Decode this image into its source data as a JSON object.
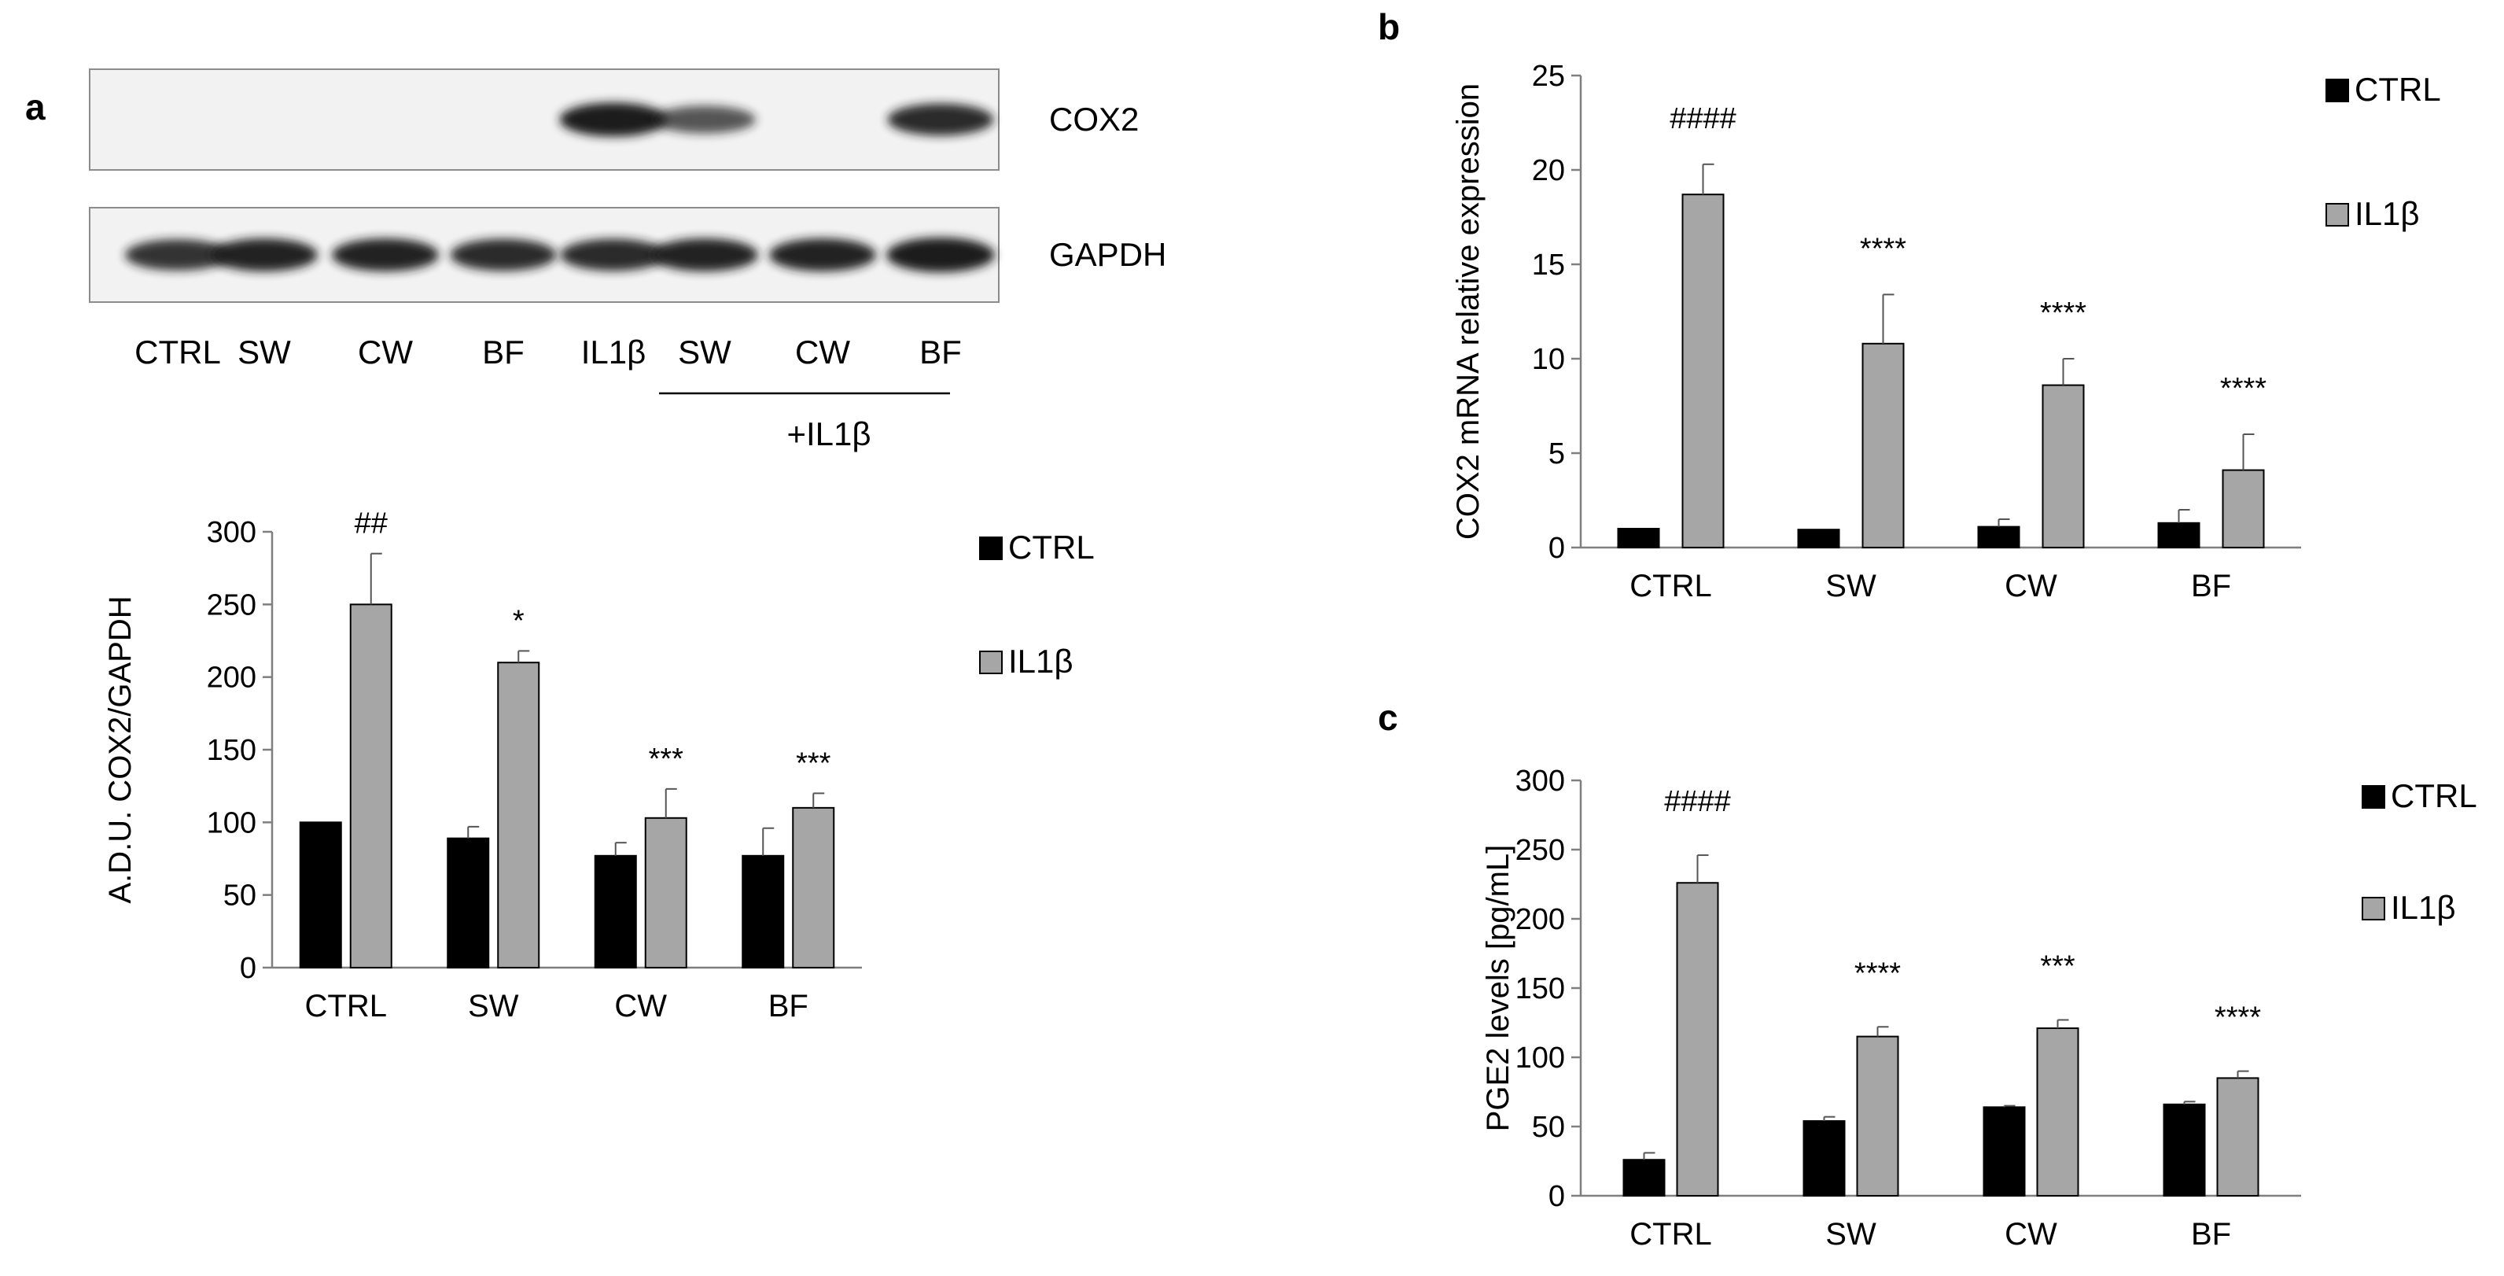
{
  "colors": {
    "ctrl": "#000000",
    "il1b": "#a6a6a6",
    "axis": "#7f7f7f",
    "blot_bg": "#f2f2f2",
    "band": "#1a1a1a"
  },
  "panels": {
    "a": {
      "letter": "a",
      "blot": {
        "lane_labels": [
          "CTRL",
          "SW",
          "CW",
          "BF",
          "IL1β",
          "SW",
          "CW",
          "BF"
        ],
        "treatment_label": "+IL1β",
        "rows": [
          {
            "label": "COX2",
            "band_intensity": [
              0,
              0,
              0,
              0,
              0.95,
              0.6,
              0.0,
              0.85
            ]
          },
          {
            "label": "GAPDH",
            "band_intensity": [
              0.8,
              0.9,
              0.9,
              0.85,
              0.85,
              0.9,
              0.9,
              1.0
            ]
          }
        ]
      }
    },
    "b": {
      "letter": "b"
    },
    "c": {
      "letter": "c"
    }
  },
  "chart_data": [
    {
      "id": "a-bar",
      "type": "bar",
      "categories": [
        "CTRL",
        "SW",
        "CW",
        "BF"
      ],
      "ylabel": "A.D.U. COX2/GAPDH",
      "ylim": [
        0,
        300
      ],
      "yticks": [
        0,
        50,
        100,
        150,
        200,
        250,
        300
      ],
      "grid": false,
      "legend_placement": "right",
      "series": [
        {
          "name": "CTRL",
          "values": [
            100,
            89,
            77,
            77
          ],
          "errors": [
            0,
            8,
            9,
            19
          ]
        },
        {
          "name": "IL1β",
          "values": [
            250,
            210,
            103,
            110
          ],
          "errors": [
            35,
            8,
            20,
            10
          ]
        }
      ],
      "annotations": [
        "##",
        "*",
        "***",
        "***"
      ]
    },
    {
      "id": "b-bar",
      "type": "bar",
      "categories": [
        "CTRL",
        "SW",
        "CW",
        "BF"
      ],
      "ylabel": "COX2 mRNA relative expression",
      "ylim": [
        0,
        25
      ],
      "yticks": [
        0,
        5,
        10,
        15,
        20,
        25
      ],
      "grid": false,
      "legend_placement": "right",
      "series": [
        {
          "name": "CTRL",
          "values": [
            1.0,
            0.95,
            1.1,
            1.3
          ],
          "errors": [
            0,
            0,
            0.4,
            0.7
          ]
        },
        {
          "name": "IL1β",
          "values": [
            18.7,
            10.8,
            8.6,
            4.1
          ],
          "errors": [
            1.6,
            2.6,
            1.4,
            1.9
          ]
        }
      ],
      "annotations": [
        "####",
        "****",
        "****",
        "****"
      ]
    },
    {
      "id": "c-bar",
      "type": "bar",
      "categories": [
        "CTRL",
        "SW",
        "CW",
        "BF"
      ],
      "ylabel": "PGE2 levels [pg/mL]",
      "ylim": [
        0,
        300
      ],
      "yticks": [
        0,
        50,
        100,
        150,
        200,
        250,
        300
      ],
      "grid": false,
      "legend_placement": "right",
      "series": [
        {
          "name": "CTRL",
          "values": [
            26,
            54,
            64,
            66
          ],
          "errors": [
            5,
            3,
            1,
            2
          ]
        },
        {
          "name": "IL1β",
          "values": [
            226,
            115,
            121,
            85
          ],
          "errors": [
            20,
            7,
            6,
            5
          ]
        }
      ],
      "annotations": [
        "####",
        "****",
        "***",
        "****"
      ]
    }
  ]
}
